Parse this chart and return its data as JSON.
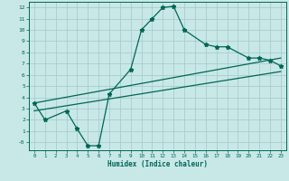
{
  "xlabel": "Humidex (Indice chaleur)",
  "bg_color": "#c8e8e8",
  "grid_color": "#a8cccc",
  "line_color": "#006655",
  "xlim": [
    -0.5,
    23.5
  ],
  "ylim": [
    -0.7,
    12.5
  ],
  "xticks": [
    0,
    1,
    2,
    3,
    4,
    5,
    6,
    7,
    8,
    9,
    10,
    11,
    12,
    13,
    14,
    15,
    16,
    17,
    18,
    19,
    20,
    21,
    22,
    23
  ],
  "yticks": [
    0,
    1,
    2,
    3,
    4,
    5,
    6,
    7,
    8,
    9,
    10,
    11,
    12
  ],
  "ytick_labels": [
    "-0",
    "1",
    "2",
    "3",
    "4",
    "5",
    "6",
    "7",
    "8",
    "9",
    "10",
    "11",
    "12"
  ],
  "curve1_x": [
    0,
    1,
    3,
    4,
    5,
    6,
    7,
    9,
    10,
    11,
    12,
    13,
    14,
    16,
    17,
    18,
    20,
    21,
    22,
    23
  ],
  "curve1_y": [
    3.5,
    2.0,
    2.8,
    1.2,
    -0.3,
    -0.3,
    4.3,
    6.5,
    10.0,
    11.0,
    12.0,
    12.1,
    10.0,
    8.7,
    8.5,
    8.5,
    7.5,
    7.5,
    7.3,
    6.8
  ],
  "curve2_x": [
    0,
    23
  ],
  "curve2_y": [
    3.5,
    7.5
  ],
  "curve3_x": [
    0,
    23
  ],
  "curve3_y": [
    2.8,
    6.3
  ]
}
